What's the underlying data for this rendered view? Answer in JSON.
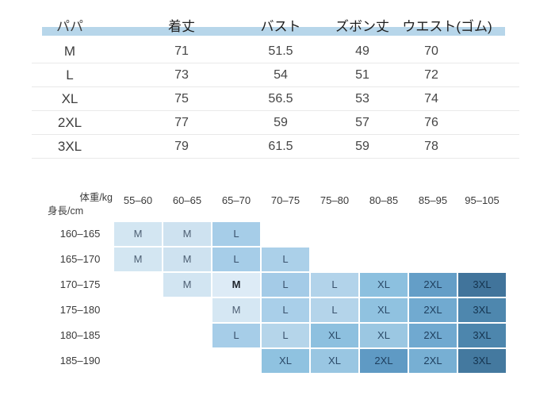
{
  "size_table": {
    "columns": [
      "パパ",
      "着丈",
      "バスト",
      "ズボン丈",
      "ウエスト(ゴム)"
    ],
    "rows": [
      [
        "M",
        "71",
        "51.5",
        "49",
        "70"
      ],
      [
        "L",
        "73",
        "54",
        "51",
        "72"
      ],
      [
        "XL",
        "75",
        "56.5",
        "53",
        "74"
      ],
      [
        "2XL",
        "77",
        "59",
        "57",
        "76"
      ],
      [
        "3XL",
        "79",
        "61.5",
        "59",
        "78"
      ]
    ],
    "header_band_color": "#b7d6ea",
    "divider_color": "#e9e9e9"
  },
  "fit_matrix": {
    "corner_top": "体重/kg",
    "corner_bottom": "身長/cm",
    "weight_columns": [
      "55–60",
      "60–65",
      "65–70",
      "70–75",
      "75–80",
      "80–85",
      "85–95",
      "95–105"
    ],
    "height_rows": [
      "160–165",
      "165–170",
      "170–175",
      "175–180",
      "180–185",
      "185–190"
    ],
    "text_colors": {
      "M": "#4d5f73",
      "L": "#3a526d",
      "XL": "#2b4a68",
      "2XL": "#1e3e5d",
      "3XL": "#15344f"
    },
    "bold_text_color": "#20262e",
    "cells": [
      [
        {
          "v": "M",
          "c": "#d3e6f2"
        },
        {
          "v": "M",
          "c": "#cee2f0"
        },
        {
          "v": "L",
          "c": "#a6cde8"
        },
        null,
        null,
        null,
        null,
        null
      ],
      [
        {
          "v": "M",
          "c": "#d3e6f2"
        },
        {
          "v": "M",
          "c": "#cee2f0"
        },
        {
          "v": "L",
          "c": "#a6cde8"
        },
        {
          "v": "L",
          "c": "#abd0e9"
        },
        null,
        null,
        null,
        null
      ],
      [
        null,
        {
          "v": "M",
          "c": "#d2e5f2"
        },
        {
          "v": "M",
          "c": "#ddebf6",
          "b": true
        },
        {
          "v": "L",
          "c": "#a4cbe7"
        },
        {
          "v": "L",
          "c": "#b2d3ea"
        },
        {
          "v": "XL",
          "c": "#8cc0df"
        },
        {
          "v": "2XL",
          "c": "#649ec7"
        },
        {
          "v": "3XL",
          "c": "#41749b"
        }
      ],
      [
        null,
        null,
        {
          "v": "M",
          "c": "#d5e7f3"
        },
        {
          "v": "L",
          "c": "#a9cfe9"
        },
        {
          "v": "L",
          "c": "#b4d4ea"
        },
        {
          "v": "XL",
          "c": "#90c2e0"
        },
        {
          "v": "2XL",
          "c": "#71aad0"
        },
        {
          "v": "3XL",
          "c": "#4e87ae"
        }
      ],
      [
        null,
        null,
        {
          "v": "L",
          "c": "#a6cde8"
        },
        {
          "v": "L",
          "c": "#b5d5ea"
        },
        {
          "v": "XL",
          "c": "#8dc0df"
        },
        {
          "v": "XL",
          "c": "#9bc7e2"
        },
        {
          "v": "2XL",
          "c": "#70a9d0"
        },
        {
          "v": "3XL",
          "c": "#4d86ad"
        }
      ],
      [
        null,
        null,
        null,
        {
          "v": "XL",
          "c": "#8fc2e0"
        },
        {
          "v": "XL",
          "c": "#99c6e2"
        },
        {
          "v": "2XL",
          "c": "#5f9ac4"
        },
        {
          "v": "2XL",
          "c": "#77afd3"
        },
        {
          "v": "3XL",
          "c": "#44799f"
        }
      ]
    ]
  },
  "chart_data": [
    {
      "type": "table",
      "title": "パパ サイズ表",
      "columns": [
        "パパ",
        "着丈",
        "バスト",
        "ズボン丈",
        "ウエスト(ゴム)"
      ],
      "rows": [
        [
          "M",
          71,
          51.5,
          49,
          70
        ],
        [
          "L",
          73,
          54,
          51,
          72
        ],
        [
          "XL",
          75,
          56.5,
          53,
          74
        ],
        [
          "2XL",
          77,
          59,
          57,
          76
        ],
        [
          "3XL",
          79,
          61.5,
          59,
          78
        ]
      ]
    },
    {
      "type": "heatmap",
      "xlabel": "体重/kg",
      "ylabel": "身長/cm",
      "x_categories": [
        "55–60",
        "60–65",
        "65–70",
        "70–75",
        "75–80",
        "80–85",
        "85–95",
        "95–105"
      ],
      "y_categories": [
        "160–165",
        "165–170",
        "170–175",
        "175–180",
        "180–185",
        "185–190"
      ],
      "values": [
        [
          "M",
          "M",
          "L",
          "",
          "",
          "",
          "",
          ""
        ],
        [
          "M",
          "M",
          "L",
          "L",
          "",
          "",
          "",
          ""
        ],
        [
          "",
          "M",
          "M",
          "L",
          "L",
          "XL",
          "2XL",
          "3XL"
        ],
        [
          "",
          "",
          "M",
          "L",
          "L",
          "XL",
          "2XL",
          "3XL"
        ],
        [
          "",
          "",
          "L",
          "L",
          "XL",
          "XL",
          "2XL",
          "3XL"
        ],
        [
          "",
          "",
          "",
          "XL",
          "XL",
          "2XL",
          "2XL",
          "3XL"
        ]
      ],
      "legend_position": "none",
      "grid": false
    }
  ]
}
